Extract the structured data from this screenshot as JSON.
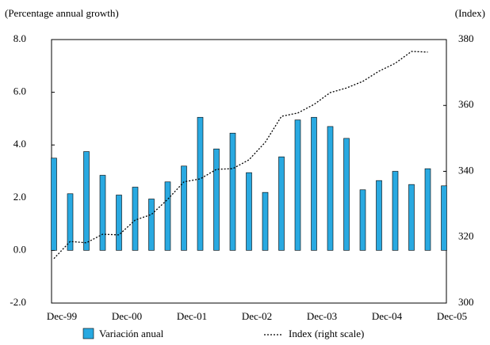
{
  "chart_data": {
    "type": "bar",
    "y_label": "(Percentage annual growth)",
    "y2_label": "(Index)",
    "categories": [
      "Dec-99",
      null,
      null,
      null,
      "Dec-00",
      null,
      null,
      null,
      "Dec-01",
      null,
      null,
      null,
      "Dec-02",
      null,
      null,
      null,
      "Dec-03",
      null,
      null,
      null,
      "Dec-04",
      null,
      null,
      null,
      "Dec-05"
    ],
    "series": [
      {
        "name": "Variación anual",
        "type": "bar",
        "color": "#29a9e1",
        "values": [
          3.5,
          2.15,
          3.75,
          2.85,
          2.1,
          2.4,
          1.95,
          2.6,
          3.2,
          5.05,
          3.85,
          4.45,
          2.95,
          2.2,
          3.55,
          4.95,
          5.05,
          4.7,
          4.25,
          2.3,
          2.65,
          3.0,
          2.5,
          3.1,
          2.45
        ]
      },
      {
        "name": "Index (right scale)",
        "type": "line",
        "color": "#000000",
        "axis": "y2",
        "values": [
          313.5,
          318.7,
          318.3,
          320.9,
          320.7,
          325.2,
          326.9,
          331.5,
          336.8,
          337.7,
          340.6,
          340.8,
          343.5,
          348.8,
          356.7,
          357.7,
          360.3,
          363.9,
          365.3,
          367.3,
          370.4,
          372.8,
          376.4,
          376.2,
          null
        ]
      }
    ],
    "ylim": [
      -2,
      8
    ],
    "yticks": [
      {
        "value": -2,
        "label": "-2.0"
      },
      {
        "value": 0,
        "label": "0.0"
      },
      {
        "value": 2,
        "label": "2.0"
      },
      {
        "value": 4,
        "label": "4.0"
      },
      {
        "value": 6,
        "label": "6.0"
      },
      {
        "value": 8,
        "label": "8.0"
      }
    ],
    "y2lim": [
      300,
      380
    ],
    "y2ticks": [
      300,
      320,
      340,
      360,
      380
    ],
    "grid": false
  }
}
